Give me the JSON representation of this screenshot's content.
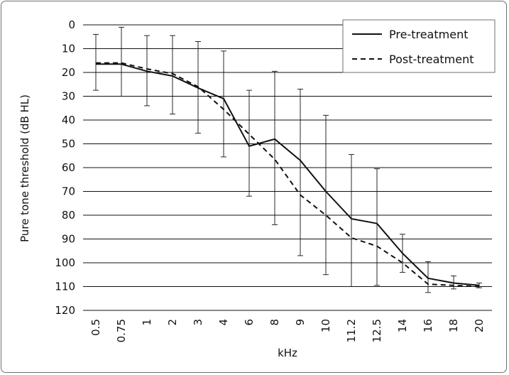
{
  "chart_data": {
    "type": "line",
    "xlabel": "kHz",
    "ylabel": "Pure tone threshold (dB HL)",
    "categories": [
      "0.5",
      "0.75",
      "1",
      "2",
      "3",
      "4",
      "6",
      "8",
      "9",
      "10",
      "11.2",
      "12.5",
      "14",
      "16",
      "18",
      "20"
    ],
    "yticks": [
      0,
      10,
      20,
      30,
      40,
      50,
      60,
      70,
      80,
      90,
      100,
      110,
      120
    ],
    "ylim": [
      0,
      120
    ],
    "y_inverted": true,
    "grid": "horizontal",
    "legend_position": "top-right",
    "series": [
      {
        "name": "Pre-treatment",
        "style": "solid",
        "values": [
          16.5,
          16.5,
          19.5,
          21.5,
          26.5,
          31,
          51,
          48,
          57,
          70,
          81.5,
          83.5,
          96,
          106.5,
          108.5,
          109.5
        ],
        "error_low": [
          4,
          1,
          4.5,
          4.5,
          7,
          11,
          27.5,
          19.5,
          27,
          38,
          54.5,
          60.5,
          88,
          99.5,
          105.5,
          108.5
        ],
        "error_high": [
          27.5,
          30,
          34,
          37.5,
          45.5,
          55.5,
          72,
          84,
          97,
          105,
          110,
          109.5,
          104,
          112.5,
          111,
          110.5
        ]
      },
      {
        "name": "Post-treatment",
        "style": "dashed",
        "values": [
          16,
          16,
          18.5,
          20.5,
          26,
          35.5,
          46,
          56.5,
          71.5,
          80,
          89.5,
          93,
          100,
          109,
          109.5,
          110
        ]
      }
    ],
    "colors": {
      "line": "#111111",
      "grid": "#111111",
      "frame": "#6f6f6f"
    }
  }
}
